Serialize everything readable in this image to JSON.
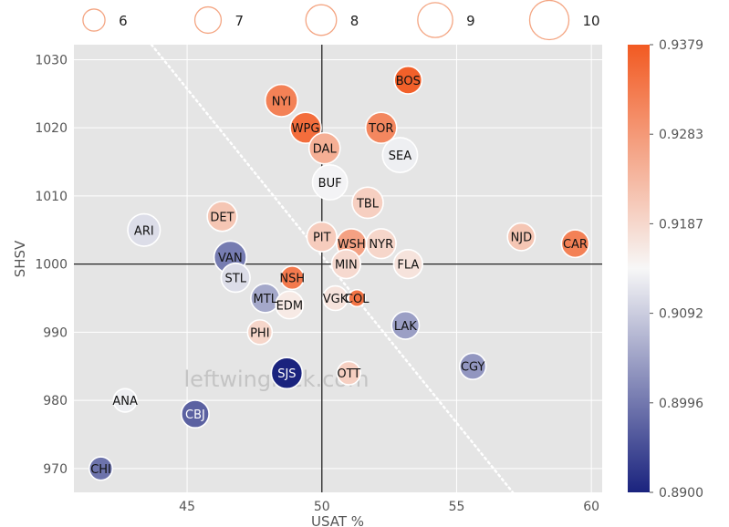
{
  "chart_data": {
    "type": "scatter",
    "title": "",
    "xlabel": "USAT %",
    "ylabel": "SHSV",
    "xlim": [
      40.8,
      60.4
    ],
    "ylim": [
      966.5,
      1032.2
    ],
    "xticks": [
      "45",
      "50",
      "55",
      "60"
    ],
    "yticks": [
      "970",
      "980",
      "990",
      "1000",
      "1010",
      "1020",
      "1030"
    ],
    "reference_lines": {
      "x": 50,
      "y": 1000
    },
    "diagonal_reference": true,
    "grid": true,
    "background": "#e5e5e5",
    "watermark": "leftwinglock.com",
    "size_legend": {
      "placement": "top",
      "labels": [
        "6",
        "7",
        "8",
        "9",
        "10"
      ],
      "values": [
        6,
        7,
        8,
        9,
        10
      ]
    },
    "colorbar": {
      "placement": "right",
      "min": 0.89,
      "max": 0.9379,
      "tick_labels": [
        "0.8900",
        "0.8996",
        "0.9092",
        "0.9187",
        "0.9283",
        "0.9379"
      ],
      "colors": [
        "#1a237e",
        "#f7f7f7",
        "#f25a22"
      ]
    },
    "points": [
      {
        "team": "BOS",
        "x": 53.2,
        "y": 1027,
        "size": 7.3,
        "color_value": 0.937
      },
      {
        "team": "NYI",
        "x": 48.5,
        "y": 1024,
        "size": 8.4,
        "color_value": 0.932
      },
      {
        "team": "WPG",
        "x": 49.4,
        "y": 1020,
        "size": 8.1,
        "color_value": 0.935
      },
      {
        "team": "TOR",
        "x": 52.2,
        "y": 1020,
        "size": 8.1,
        "color_value": 0.931
      },
      {
        "team": "DAL",
        "x": 50.1,
        "y": 1017,
        "size": 8.1,
        "color_value": 0.925
      },
      {
        "team": "SEA",
        "x": 52.9,
        "y": 1016,
        "size": 9.0,
        "color_value": 0.913
      },
      {
        "team": "BUF",
        "x": 50.3,
        "y": 1012,
        "size": 9.0,
        "color_value": 0.9135
      },
      {
        "team": "TBL",
        "x": 51.7,
        "y": 1009,
        "size": 8.1,
        "color_value": 0.92
      },
      {
        "team": "DET",
        "x": 46.3,
        "y": 1007,
        "size": 7.8,
        "color_value": 0.9215
      },
      {
        "team": "ARI",
        "x": 43.4,
        "y": 1005,
        "size": 8.4,
        "color_value": 0.911
      },
      {
        "team": "PIT",
        "x": 50.0,
        "y": 1004,
        "size": 7.8,
        "color_value": 0.9205
      },
      {
        "team": "WSH",
        "x": 51.1,
        "y": 1003,
        "size": 7.8,
        "color_value": 0.927
      },
      {
        "team": "NYR",
        "x": 52.2,
        "y": 1003,
        "size": 7.8,
        "color_value": 0.919
      },
      {
        "team": "NJD",
        "x": 57.4,
        "y": 1004,
        "size": 7.3,
        "color_value": 0.9215
      },
      {
        "team": "CAR",
        "x": 59.4,
        "y": 1003,
        "size": 7.3,
        "color_value": 0.932
      },
      {
        "team": "VAN",
        "x": 46.6,
        "y": 1001,
        "size": 8.4,
        "color_value": 0.9
      },
      {
        "team": "MIN",
        "x": 50.9,
        "y": 1000,
        "size": 7.6,
        "color_value": 0.9185
      },
      {
        "team": "FLA",
        "x": 53.2,
        "y": 1000,
        "size": 7.6,
        "color_value": 0.917
      },
      {
        "team": "STL",
        "x": 46.8,
        "y": 998,
        "size": 7.6,
        "color_value": 0.911
      },
      {
        "team": "NSH",
        "x": 48.9,
        "y": 998,
        "size": 6.3,
        "color_value": 0.933
      },
      {
        "team": "MTL",
        "x": 47.9,
        "y": 995,
        "size": 7.6,
        "color_value": 0.905
      },
      {
        "team": "EDM",
        "x": 48.8,
        "y": 994,
        "size": 7.3,
        "color_value": 0.916
      },
      {
        "team": "VGK",
        "x": 50.5,
        "y": 995,
        "size": 6.6,
        "color_value": 0.917
      },
      {
        "team": "COL",
        "x": 51.3,
        "y": 995,
        "size": 4.8,
        "color_value": 0.934
      },
      {
        "team": "LAK",
        "x": 53.1,
        "y": 991,
        "size": 7.3,
        "color_value": 0.904
      },
      {
        "team": "PHI",
        "x": 47.7,
        "y": 990,
        "size": 6.6,
        "color_value": 0.919
      },
      {
        "team": "OTT",
        "x": 51.0,
        "y": 984,
        "size": 6.3,
        "color_value": 0.92
      },
      {
        "team": "SJS",
        "x": 48.7,
        "y": 984,
        "size": 8.1,
        "color_value": 0.89
      },
      {
        "team": "CGY",
        "x": 55.6,
        "y": 985,
        "size": 7.0,
        "color_value": 0.903
      },
      {
        "team": "ANA",
        "x": 42.7,
        "y": 980,
        "size": 6.3,
        "color_value": 0.913
      },
      {
        "team": "CBJ",
        "x": 45.3,
        "y": 978,
        "size": 7.3,
        "color_value": 0.897
      },
      {
        "team": "CHI",
        "x": 41.8,
        "y": 970,
        "size": 6.3,
        "color_value": 0.899
      }
    ]
  }
}
